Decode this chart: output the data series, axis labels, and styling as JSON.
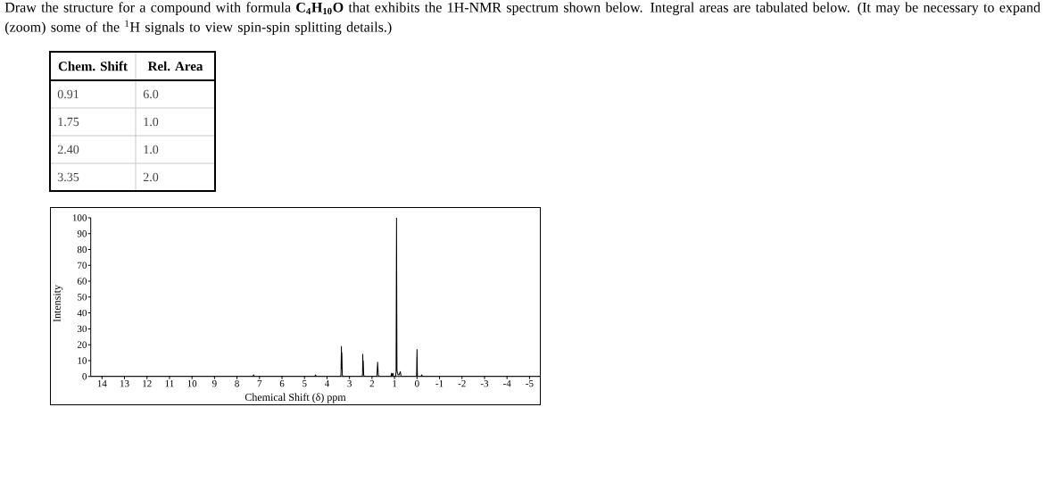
{
  "chart_data": {
    "type": "line",
    "title": "Draw the structure for a compound with formula **C$_{4}$H$_{10}$O** that exhibits the 1H-NMR spectrum shown below. Integral areas are tabulated below. (It may be necessary to expand (zoom) some of the $^{1}$H signals to view spin-spin splitting details.)",
    "xlabel": "Chemical Shift (δ) ppm",
    "ylabel": "Intensity",
    "annotations": [
      "Chem. Shift",
      "Rel. Area",
      "0.91",
      "6.0",
      "1.75",
      "1.0",
      "2.40",
      "1.0",
      "3.35",
      "2.0"
    ],
    "x": [
      14.5,
      7.29,
      7.26,
      7.23,
      4.54,
      4.51,
      4.48,
      3.41,
      3.38,
      3.36,
      3.35,
      3.34,
      3.32,
      3.29,
      2.45,
      2.42,
      2.41,
      2.4,
      2.39,
      2.37,
      2.34,
      1.8,
      1.78,
      1.76,
      1.75,
      1.74,
      1.72,
      1.69,
      1.16,
      1.13,
      1.11,
      1.07,
      1.04,
      0.95,
      0.93,
      0.91,
      0.89,
      0.87,
      0.84,
      0.8,
      0.74,
      0.71,
      0.02,
      0.0,
      -0.02,
      -0.18,
      -0.21,
      -0.24,
      -5.5
    ],
    "series": [
      {
        "color": "#000000",
        "values": [
          0,
          0,
          1,
          0,
          0,
          1,
          0,
          0,
          1,
          19,
          5,
          15,
          1,
          0,
          0,
          1,
          14,
          4,
          10,
          1,
          0,
          0,
          1,
          6,
          9,
          6,
          1,
          0,
          0,
          2,
          0,
          2,
          0,
          0,
          3,
          100,
          4,
          2,
          1,
          1,
          3,
          0,
          0,
          17,
          0,
          0,
          1,
          0,
          0
        ]
      }
    ],
    "xlim": [
      14.5,
      -5.5
    ],
    "ylim": [
      0,
      100
    ],
    "xticks": [
      14,
      13,
      12,
      11,
      10,
      9,
      8,
      7,
      6,
      5,
      4,
      3,
      2,
      1,
      0,
      -1,
      -2,
      -3,
      -4,
      -5
    ],
    "yticks": [
      0,
      10,
      20,
      30,
      40,
      50,
      60,
      70,
      80,
      90,
      100
    ]
  }
}
